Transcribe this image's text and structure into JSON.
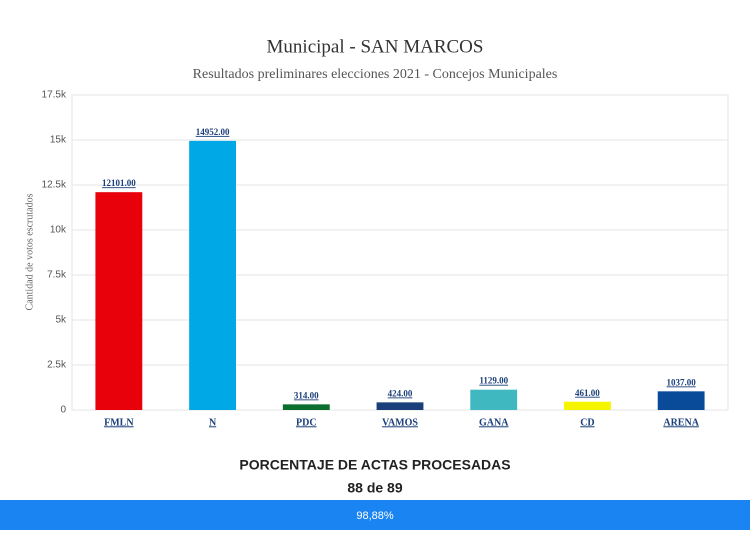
{
  "chart_data": {
    "type": "bar",
    "title": "Municipal - SAN MARCOS",
    "subtitle": "Resultados preliminares elecciones 2021 - Concejos Municipales",
    "y_label": "Cantidad de votos escrutados",
    "categories": [
      "FMLN",
      "N",
      "PDC",
      "VAMOS",
      "GANA",
      "CD",
      "ARENA"
    ],
    "values": [
      12101,
      14952,
      314,
      424,
      1129,
      461,
      1037
    ],
    "value_labels": [
      "12101.00",
      "14952.00",
      "314.00",
      "424.00",
      "1129.00",
      "461.00",
      "1037.00"
    ],
    "colors": [
      "#e8000b",
      "#00a9e6",
      "#0b6e2f",
      "#1b3f7a",
      "#40b8c0",
      "#f5f500",
      "#0a4b99"
    ],
    "ylim": [
      0,
      17500
    ],
    "yticks": [
      0,
      {
        "value": 2500,
        "label": "2.5k"
      },
      {
        "value": 5000,
        "label": "5k"
      },
      {
        "value": 7500,
        "label": "7.5k"
      },
      {
        "value": 10000,
        "label": "10k"
      },
      {
        "value": 12500,
        "label": "12.5k"
      },
      {
        "value": 15000,
        "label": "15k"
      },
      {
        "value": 17500,
        "label": "17.5k"
      }
    ],
    "grid": true
  },
  "footer": {
    "heading": "PORCENTAJE DE ACTAS PROCESADAS",
    "count": "88 de 89",
    "progress": "98,88%"
  }
}
